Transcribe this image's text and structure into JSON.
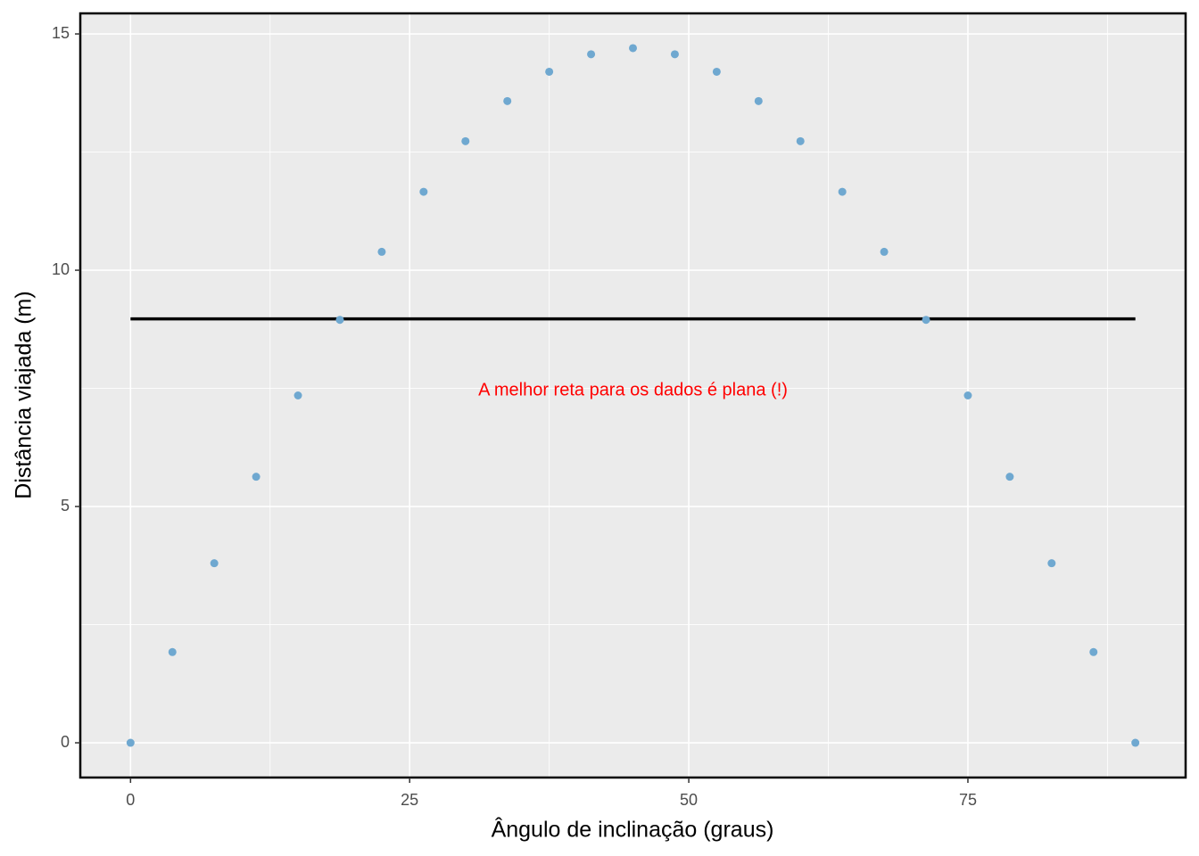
{
  "chart_data": {
    "type": "scatter",
    "x_label": "Ângulo de inclinação (graus)",
    "y_label": "Distância viajada (m)",
    "x": [
      0,
      3.75,
      7.5,
      11.25,
      15,
      18.75,
      22.5,
      26.25,
      30,
      33.75,
      37.5,
      41.25,
      45,
      48.75,
      52.5,
      56.25,
      60,
      63.75,
      67.5,
      71.25,
      75,
      78.75,
      82.5,
      86.25,
      90
    ],
    "values": [
      0,
      1.92,
      3.8,
      5.63,
      7.35,
      8.95,
      10.39,
      11.66,
      12.73,
      13.58,
      14.2,
      14.57,
      14.7,
      14.57,
      14.2,
      13.58,
      12.73,
      11.66,
      10.39,
      8.95,
      7.35,
      5.63,
      3.8,
      1.92,
      0
    ],
    "color": "#6fa8d0",
    "reference_line": {
      "value": 8.97,
      "xrange": [
        0,
        90
      ],
      "color": "#000000"
    },
    "annotation": {
      "text": "A melhor reta para os dados é plana (!)",
      "x": 45,
      "y": 7.45,
      "color": "#ff0000"
    },
    "xlim": [
      -4.5,
      94.5
    ],
    "ylim": [
      -0.735,
      15.435
    ],
    "xticks": [
      0,
      25,
      50,
      75
    ],
    "yticks": [
      0,
      5,
      10,
      15
    ],
    "xminor": [
      12.5,
      37.5,
      62.5,
      87.5
    ],
    "yminor": [
      2.5,
      7.5,
      12.5
    ],
    "grid": true
  }
}
